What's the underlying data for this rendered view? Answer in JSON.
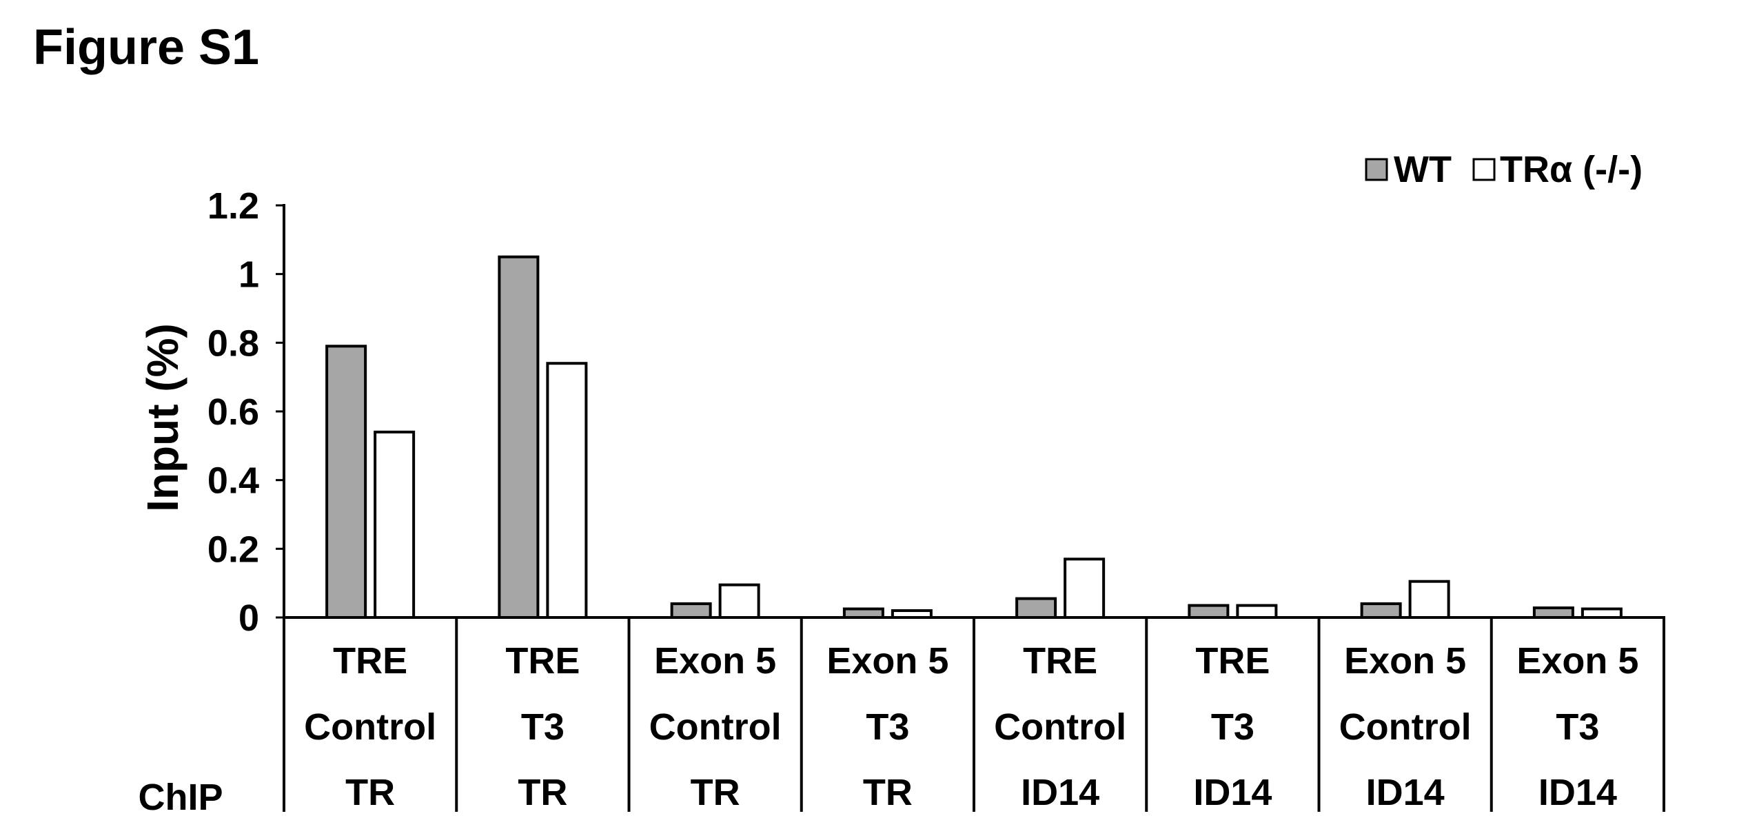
{
  "figure_label": "Figure S1",
  "chart_data": {
    "type": "bar",
    "title": "",
    "ylabel": "Input (%)",
    "ylim": [
      0,
      1.2
    ],
    "yticks": [
      "0",
      "0.2",
      "0.4",
      "0.6",
      "0.8",
      "1",
      "1.2"
    ],
    "ytick_values": [
      0,
      0.2,
      0.4,
      0.6,
      0.8,
      1.0,
      1.2
    ],
    "legend_position": "top-right",
    "grid": false,
    "colors": {
      "WT": "#a6a6a6",
      "TRa": "#ffffff",
      "stroke": "#000000"
    },
    "row_label": "ChIP",
    "categories": [
      {
        "region": "TRE",
        "treatment": "Control",
        "chip": "TR"
      },
      {
        "region": "TRE",
        "treatment": "T3",
        "chip": "TR"
      },
      {
        "region": "Exon 5",
        "treatment": "Control",
        "chip": "TR"
      },
      {
        "region": "Exon 5",
        "treatment": "T3",
        "chip": "TR"
      },
      {
        "region": "TRE",
        "treatment": "Control",
        "chip": "ID14"
      },
      {
        "region": "TRE",
        "treatment": "T3",
        "chip": "ID14"
      },
      {
        "region": "Exon 5",
        "treatment": "Control",
        "chip": "ID14"
      },
      {
        "region": "Exon 5",
        "treatment": "T3",
        "chip": "ID14"
      }
    ],
    "series": [
      {
        "name": "WT",
        "values": [
          0.79,
          1.05,
          0.04,
          0.025,
          0.055,
          0.035,
          0.04,
          0.028
        ]
      },
      {
        "name": "TRα (-/-)",
        "values": [
          0.54,
          0.74,
          0.095,
          0.02,
          0.17,
          0.035,
          0.105,
          0.025
        ]
      }
    ]
  }
}
